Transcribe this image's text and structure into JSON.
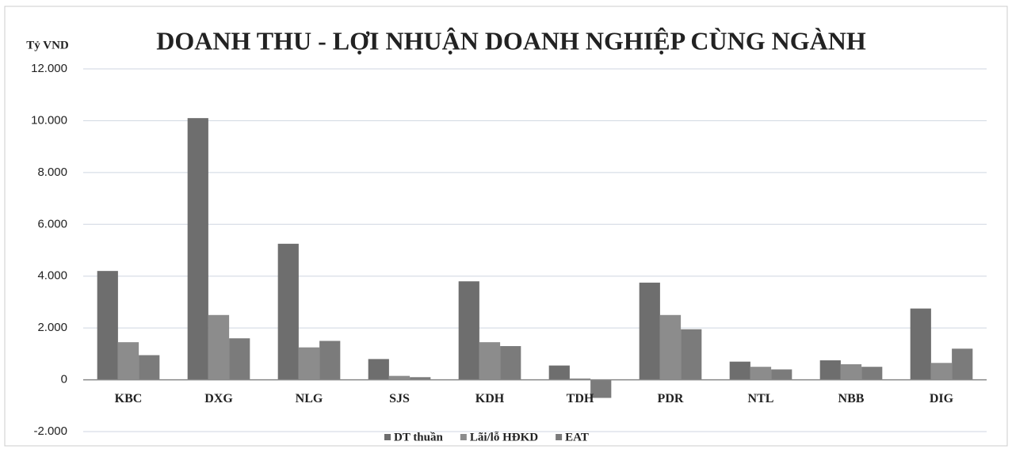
{
  "chart_data": {
    "type": "bar",
    "title": "DOANH THU - LỢI NHUẬN DOANH NGHIỆP CÙNG NGÀNH",
    "y_label": "Tỷ VND",
    "categories": [
      "KBC",
      "DXG",
      "NLG",
      "SJS",
      "KDH",
      "TDH",
      "PDR",
      "NTL",
      "NBB",
      "DIG"
    ],
    "series": [
      {
        "name": "DT thuần",
        "color": "#6e6e6e",
        "values": [
          4200,
          10100,
          5250,
          800,
          3800,
          550,
          3750,
          700,
          750,
          2750
        ]
      },
      {
        "name": "Lãi/lỗ HĐKD",
        "color": "#8c8c8c",
        "values": [
          1450,
          2500,
          1250,
          150,
          1450,
          50,
          2500,
          500,
          600,
          650
        ]
      },
      {
        "name": "EAT",
        "color": "#7b7b7b",
        "values": [
          950,
          1600,
          1500,
          100,
          1300,
          -700,
          1950,
          400,
          500,
          1200
        ]
      }
    ],
    "ylim": [
      -2000,
      12000
    ],
    "yticks": [
      {
        "value": -2000,
        "label": "-2.000"
      },
      0,
      {
        "value": 2000,
        "label": "2.000"
      },
      {
        "value": 4000,
        "label": "4.000"
      },
      {
        "value": 6000,
        "label": "6.000"
      },
      {
        "value": 8000,
        "label": "8.000"
      },
      {
        "value": 10000,
        "label": "10.000"
      },
      {
        "value": 12000,
        "label": "12.000"
      }
    ],
    "grid": true,
    "legend": "bottom"
  }
}
